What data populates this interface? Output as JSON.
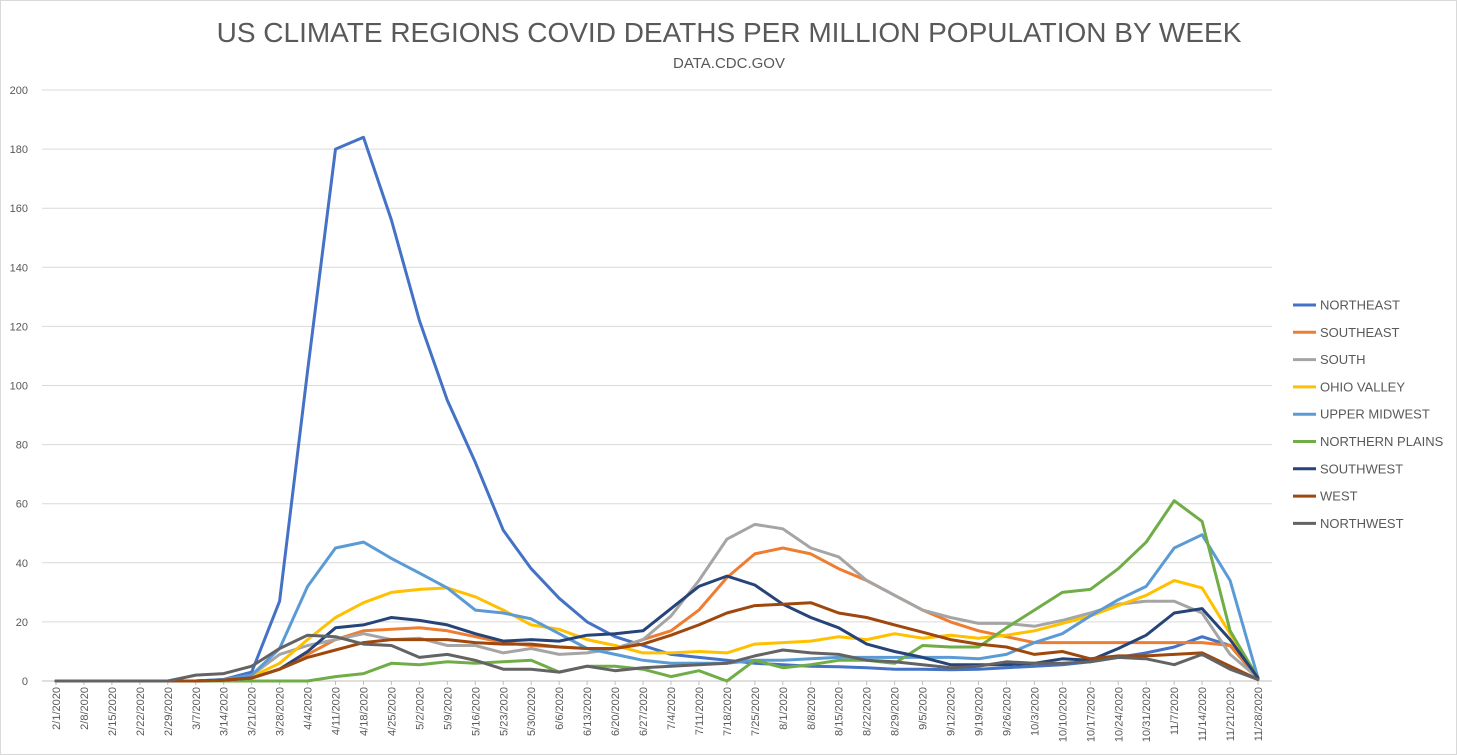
{
  "chart_data": {
    "type": "line",
    "title": "US CLIMATE REGIONS COVID DEATHS PER MILLION POPULATION BY WEEK",
    "subtitle": "DATA.CDC.GOV",
    "xlabel": "",
    "ylabel": "",
    "ylim": [
      0,
      200
    ],
    "yticks": [
      0,
      20,
      40,
      60,
      80,
      100,
      120,
      140,
      160,
      180,
      200
    ],
    "grid": true,
    "legend_position": "right",
    "categories": [
      "2/1/2020",
      "2/8/2020",
      "2/15/2020",
      "2/22/2020",
      "2/29/2020",
      "3/7/2020",
      "3/14/2020",
      "3/21/2020",
      "3/28/2020",
      "4/4/2020",
      "4/11/2020",
      "4/18/2020",
      "4/25/2020",
      "5/2/2020",
      "5/9/2020",
      "5/16/2020",
      "5/23/2020",
      "5/30/2020",
      "6/6/2020",
      "6/13/2020",
      "6/20/2020",
      "6/27/2020",
      "7/4/2020",
      "7/11/2020",
      "7/18/2020",
      "7/25/2020",
      "8/1/2020",
      "8/8/2020",
      "8/15/2020",
      "8/22/2020",
      "8/29/2020",
      "9/5/2020",
      "9/12/2020",
      "9/19/2020",
      "9/26/2020",
      "10/3/2020",
      "10/10/2020",
      "10/17/2020",
      "10/24/2020",
      "10/31/2020",
      "11/7/2020",
      "11/14/2020",
      "11/21/2020",
      "11/28/2020"
    ],
    "series": [
      {
        "name": "NORTHEAST",
        "color": "#4472C4",
        "values": [
          0,
          0,
          0,
          0,
          0,
          0,
          0.5,
          3,
          27,
          105,
          180,
          184,
          156,
          122,
          95,
          74,
          51,
          38,
          28,
          20,
          15,
          12,
          9,
          8,
          7,
          6,
          5.5,
          5,
          4.8,
          4.5,
          4,
          4,
          3.8,
          4,
          4.5,
          5,
          5.5,
          6.5,
          8,
          9.5,
          11.5,
          15,
          12,
          1
        ]
      },
      {
        "name": "SOUTHEAST",
        "color": "#ED7D31",
        "values": [
          0,
          0,
          0,
          0,
          0,
          0,
          0.3,
          1,
          4,
          9,
          14,
          17,
          17.5,
          18,
          17,
          15,
          13,
          12,
          11.5,
          11,
          11,
          14,
          17,
          24,
          35,
          43,
          45,
          43,
          38,
          34,
          29,
          24,
          20,
          17,
          15,
          13,
          13,
          13,
          13,
          13,
          13,
          13,
          12,
          1
        ]
      },
      {
        "name": "SOUTH",
        "color": "#A5A5A5",
        "values": [
          0,
          0,
          0,
          0,
          0,
          0,
          0.3,
          2,
          9,
          12,
          14,
          16,
          14,
          14.5,
          12,
          12,
          9.5,
          11,
          9,
          9.5,
          11,
          14,
          22,
          34,
          48,
          53,
          51.5,
          45,
          42,
          34,
          29,
          24,
          21.5,
          19.5,
          19.5,
          18.5,
          20.5,
          23,
          26,
          27,
          27,
          23,
          9,
          1
        ]
      },
      {
        "name": "OHIO VALLEY",
        "color": "#FFC000",
        "values": [
          0,
          0,
          0,
          0,
          0,
          0,
          0.3,
          1.5,
          6,
          14,
          21.5,
          26.5,
          30,
          31,
          31.5,
          28.5,
          24,
          19,
          17.5,
          14,
          12,
          9.5,
          9.5,
          10,
          9.5,
          12.5,
          13,
          13.5,
          15,
          14,
          16,
          14.5,
          15.5,
          14.5,
          15.5,
          17,
          19.5,
          22,
          25.5,
          29,
          34,
          31.5,
          16,
          1
        ]
      },
      {
        "name": "UPPER MIDWEST",
        "color": "#5B9BD5",
        "values": [
          0,
          0,
          0,
          0,
          0,
          0,
          0.5,
          2,
          11,
          32,
          45,
          47,
          41.5,
          36.5,
          31.5,
          24,
          23,
          21,
          16,
          11,
          9,
          7,
          6,
          6,
          6,
          7,
          7,
          7.5,
          8,
          8,
          8,
          8,
          8,
          7.5,
          9,
          13,
          16,
          22,
          27.5,
          32,
          45,
          49.5,
          34,
          1
        ]
      },
      {
        "name": "NORTHERN PLAINS",
        "color": "#70AD47",
        "values": [
          0,
          0,
          0,
          0,
          0,
          0,
          0,
          0,
          0,
          0,
          1.5,
          2.5,
          6,
          5.5,
          6.5,
          6,
          6.5,
          7,
          3,
          5,
          5,
          4,
          1.5,
          3.5,
          0,
          7,
          4.5,
          5.5,
          7,
          7,
          6,
          12,
          11.5,
          11.5,
          18,
          24,
          30,
          31,
          38,
          47,
          61,
          54,
          17,
          1
        ]
      },
      {
        "name": "SOUTHWEST",
        "color": "#264478",
        "values": [
          0,
          0,
          0,
          0,
          0,
          0,
          0.3,
          1,
          4,
          10,
          18,
          19,
          21.5,
          20.5,
          19,
          16,
          13.5,
          14,
          13.5,
          15.5,
          16,
          17,
          24.5,
          32,
          35.5,
          32.5,
          26,
          21.5,
          18,
          12.5,
          10,
          8,
          5.5,
          5.5,
          5.5,
          6,
          7.5,
          7,
          11,
          15.5,
          23,
          24.5,
          14,
          1
        ]
      },
      {
        "name": "WEST",
        "color": "#9E480E",
        "values": [
          0,
          0,
          0,
          0,
          0,
          0,
          0.3,
          1,
          4,
          8,
          10.5,
          13,
          14,
          14,
          14,
          13,
          12.5,
          12.5,
          11.5,
          11,
          11,
          12.5,
          15.5,
          19,
          23,
          25.5,
          26,
          26.5,
          23,
          21.5,
          19,
          16.5,
          14,
          12.5,
          11.5,
          9,
          10,
          7.5,
          8.5,
          8.5,
          9,
          9.5,
          5,
          0.5
        ]
      },
      {
        "name": "NORTHWEST",
        "color": "#636363",
        "values": [
          0,
          0,
          0,
          0,
          0,
          2,
          2.5,
          5,
          11,
          15.5,
          15,
          12.5,
          12,
          8,
          9,
          7,
          4,
          4,
          3,
          5,
          3.5,
          4.5,
          5,
          5.5,
          6,
          8.5,
          10.5,
          9.5,
          9,
          7,
          6.5,
          5.5,
          4.5,
          5,
          6.5,
          6,
          6,
          6.5,
          8,
          7.5,
          5.5,
          9,
          4,
          0.5
        ]
      }
    ]
  }
}
